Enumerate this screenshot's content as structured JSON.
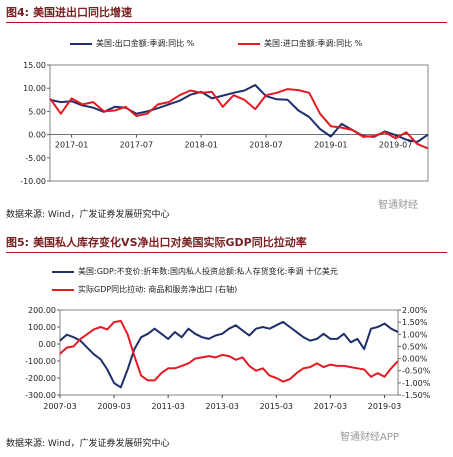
{
  "figure4": {
    "label": "图4:",
    "title": "美国进出口同比增速",
    "source": "数据来源: Wind，广发证券发展研究中心",
    "watermark": "智通财经",
    "chart_data": {
      "type": "line",
      "x_ticks": [
        "2017-01",
        "2017-07",
        "2018-01",
        "2018-07",
        "2019-01",
        "2019-07"
      ],
      "y_ticks": [
        "15.00",
        "10.00",
        "5.00",
        "0.00",
        "-5.00",
        "-10.00"
      ],
      "ylim": [
        -10,
        15
      ],
      "grid": false,
      "legend": "top",
      "series": [
        {
          "name": "美国:出口金额:季调:同比 %",
          "color": "#1f2f6b",
          "x": [
            "2016-11",
            "2016-12",
            "2017-01",
            "2017-02",
            "2017-03",
            "2017-04",
            "2017-05",
            "2017-06",
            "2017-07",
            "2017-08",
            "2017-09",
            "2017-10",
            "2017-11",
            "2017-12",
            "2018-01",
            "2018-02",
            "2018-03",
            "2018-04",
            "2018-05",
            "2018-06",
            "2018-07",
            "2018-08",
            "2018-09",
            "2018-10",
            "2018-11",
            "2018-12",
            "2019-01",
            "2019-02",
            "2019-03",
            "2019-04",
            "2019-05",
            "2019-06",
            "2019-07",
            "2019-08",
            "2019-09",
            "2019-10"
          ],
          "values": [
            7.5,
            7.0,
            7.2,
            6.3,
            5.8,
            4.9,
            6.0,
            5.8,
            4.5,
            5.0,
            5.7,
            6.5,
            7.3,
            8.6,
            9.2,
            7.8,
            8.4,
            9.0,
            9.5,
            10.7,
            8.3,
            7.6,
            7.5,
            5.2,
            3.8,
            1.2,
            -0.4,
            2.3,
            1.0,
            -0.3,
            -0.5,
            0.7,
            -0.1,
            -1.1,
            -1.6,
            0.0
          ]
        },
        {
          "name": "美国:进口金额:季调:同比 %",
          "color": "#e31b23",
          "x": [
            "2016-11",
            "2016-12",
            "2017-01",
            "2017-02",
            "2017-03",
            "2017-04",
            "2017-05",
            "2017-06",
            "2017-07",
            "2017-08",
            "2017-09",
            "2017-10",
            "2017-11",
            "2017-12",
            "2018-01",
            "2018-02",
            "2018-03",
            "2018-04",
            "2018-05",
            "2018-06",
            "2018-07",
            "2018-08",
            "2018-09",
            "2018-10",
            "2018-11",
            "2018-12",
            "2019-01",
            "2019-02",
            "2019-03",
            "2019-04",
            "2019-05",
            "2019-06",
            "2019-07",
            "2019-08",
            "2019-09",
            "2019-10"
          ],
          "values": [
            7.8,
            4.5,
            7.8,
            6.5,
            7.0,
            5.0,
            5.2,
            6.0,
            4.0,
            4.5,
            6.5,
            7.0,
            8.5,
            9.5,
            9.0,
            9.2,
            6.0,
            8.5,
            7.5,
            5.5,
            8.5,
            9.0,
            9.8,
            9.6,
            9.0,
            4.5,
            1.8,
            1.5,
            1.0,
            -0.5,
            -0.3,
            0.5,
            -0.8,
            0.5,
            -2.0,
            -3.0
          ]
        }
      ]
    }
  },
  "figure5": {
    "label": "图5:",
    "title": "美国私人库存变化VS净出口对美国实际GDP同比拉动率",
    "source": "数据来源: Wind，广发证券发展研究中心",
    "watermark": "智通财经APP",
    "chart_data": {
      "type": "line",
      "x_ticks": [
        "2007-03",
        "2009-03",
        "2011-03",
        "2013-03",
        "2015-03",
        "2017-03",
        "2019-03"
      ],
      "y_ticks_left": [
        "200.00",
        "100.00",
        "0.00",
        "-100.00",
        "-200.00",
        "-300.00"
      ],
      "y_ticks_right": [
        "2.00%",
        "1.50%",
        "1.00%",
        "0.50%",
        "0.00%",
        "-0.50%",
        "-1.00%",
        "-1.50%"
      ],
      "ylim_left": [
        -300,
        200
      ],
      "ylim_right": [
        -1.5,
        2.0
      ],
      "grid": false,
      "legend": "top",
      "series": [
        {
          "name": "美国:GDP:不变价:折年数:国内私人投资总额:私人存货变化:季调 十亿美元",
          "axis": "left",
          "color": "#1f2f6b",
          "x": [
            "2007-03",
            "2007-06",
            "2007-09",
            "2007-12",
            "2008-03",
            "2008-06",
            "2008-09",
            "2008-12",
            "2009-03",
            "2009-06",
            "2009-09",
            "2009-12",
            "2010-03",
            "2010-06",
            "2010-09",
            "2010-12",
            "2011-03",
            "2011-06",
            "2011-09",
            "2011-12",
            "2012-03",
            "2012-06",
            "2012-09",
            "2012-12",
            "2013-03",
            "2013-06",
            "2013-09",
            "2013-12",
            "2014-03",
            "2014-06",
            "2014-09",
            "2014-12",
            "2015-03",
            "2015-06",
            "2015-09",
            "2015-12",
            "2016-03",
            "2016-06",
            "2016-09",
            "2016-12",
            "2017-03",
            "2017-06",
            "2017-09",
            "2017-12",
            "2018-03",
            "2018-06",
            "2018-09",
            "2018-12",
            "2019-03",
            "2019-06",
            "2019-09"
          ],
          "values": [
            20,
            55,
            40,
            20,
            -20,
            -60,
            -90,
            -150,
            -230,
            -255,
            -150,
            -30,
            40,
            60,
            90,
            60,
            30,
            70,
            40,
            90,
            60,
            40,
            30,
            50,
            60,
            90,
            110,
            80,
            50,
            90,
            100,
            90,
            110,
            130,
            100,
            70,
            40,
            20,
            30,
            60,
            30,
            30,
            60,
            10,
            30,
            -30,
            90,
            100,
            120,
            90,
            70
          ]
        },
        {
          "name": "实际GDP同比拉动: 商品和服务净出口 (右轴)",
          "axis": "right",
          "color": "#e31b23",
          "x": [
            "2007-03",
            "2007-06",
            "2007-09",
            "2007-12",
            "2008-03",
            "2008-06",
            "2008-09",
            "2008-12",
            "2009-03",
            "2009-06",
            "2009-09",
            "2009-12",
            "2010-03",
            "2010-06",
            "2010-09",
            "2010-12",
            "2011-03",
            "2011-06",
            "2011-09",
            "2011-12",
            "2012-03",
            "2012-06",
            "2012-09",
            "2012-12",
            "2013-03",
            "2013-06",
            "2013-09",
            "2013-12",
            "2014-03",
            "2014-06",
            "2014-09",
            "2014-12",
            "2015-03",
            "2015-06",
            "2015-09",
            "2015-12",
            "2016-03",
            "2016-06",
            "2016-09",
            "2016-12",
            "2017-03",
            "2017-06",
            "2017-09",
            "2017-12",
            "2018-03",
            "2018-06",
            "2018-09",
            "2018-12",
            "2019-03",
            "2019-06",
            "2019-09"
          ],
          "values": [
            0.2,
            0.45,
            0.5,
            0.8,
            1.0,
            1.2,
            1.3,
            1.2,
            1.5,
            1.55,
            1.0,
            0.1,
            -0.7,
            -0.9,
            -0.9,
            -0.6,
            -0.4,
            -0.4,
            -0.3,
            -0.2,
            0.0,
            0.05,
            0.1,
            0.05,
            0.15,
            0.1,
            -0.05,
            0.05,
            -0.3,
            -0.5,
            -0.4,
            -0.7,
            -0.8,
            -0.95,
            -0.85,
            -0.6,
            -0.4,
            -0.35,
            -0.2,
            -0.35,
            -0.25,
            -0.3,
            -0.3,
            -0.35,
            -0.4,
            -0.45,
            -0.75,
            -0.6,
            -0.75,
            -0.4,
            -0.1
          ]
        }
      ]
    }
  }
}
